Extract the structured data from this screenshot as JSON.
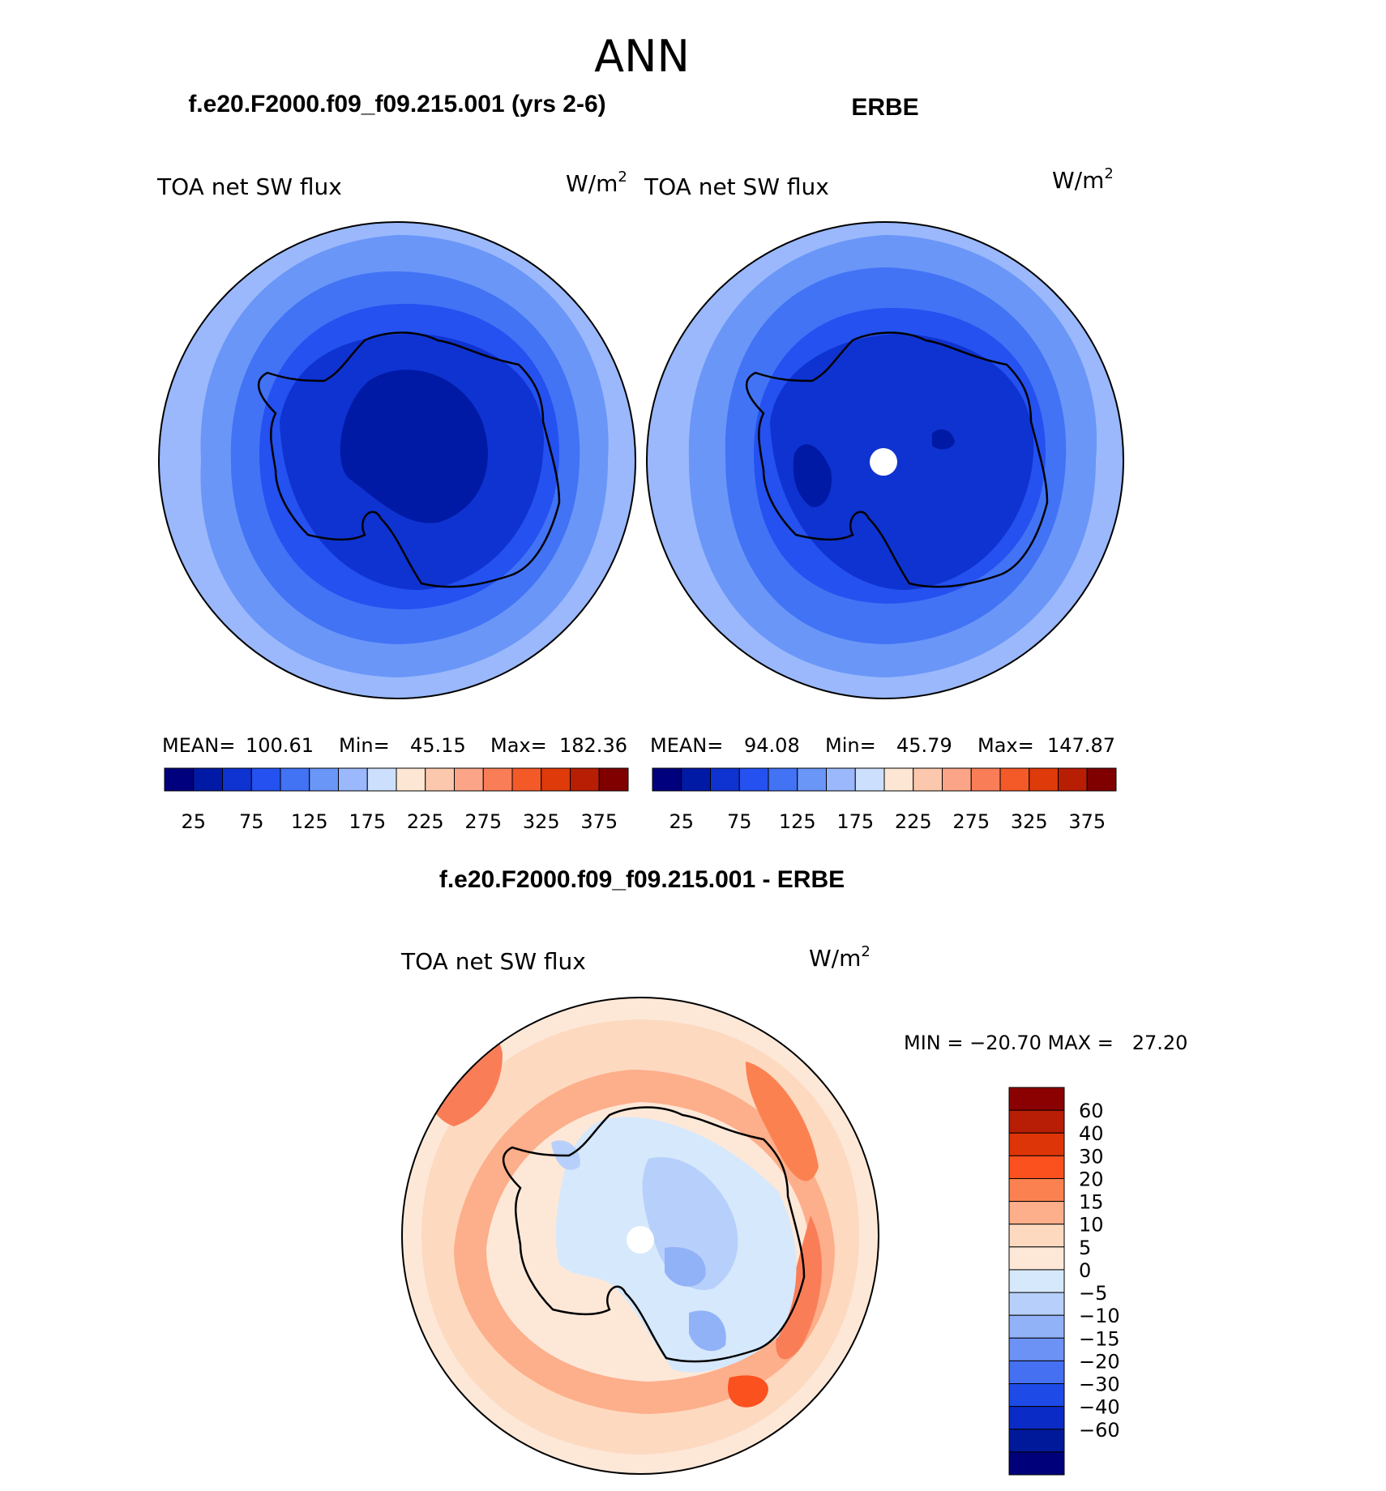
{
  "page_title": "ANN",
  "top_left": {
    "case_title": "f.e20.F2000.f09_f09.215.001 (yrs 2-6)",
    "variable": "TOA net SW flux",
    "units": "W/m",
    "units_sup": "2",
    "stats": {
      "mean_label": "MEAN=",
      "mean": "100.61",
      "min_label": "Min=",
      "min": "45.15",
      "max_label": "Max=",
      "max": "182.36"
    }
  },
  "top_right": {
    "case_title": "ERBE",
    "variable": "TOA net SW flux",
    "units": "W/m",
    "units_sup": "2",
    "stats": {
      "mean_label": "MEAN=",
      "mean": "94.08",
      "min_label": "Min=",
      "min": "45.79",
      "max_label": "Max=",
      "max": "147.87"
    }
  },
  "abs_colorbar": {
    "colors": [
      "#00007f",
      "#001aa6",
      "#0f33d1",
      "#2451f0",
      "#4273f5",
      "#6a96f8",
      "#9ab8fb",
      "#cce0fd",
      "#fde7d4",
      "#fcc8ad",
      "#fba487",
      "#f97e57",
      "#f45a28",
      "#de3a0a",
      "#b71e04",
      "#800000"
    ],
    "labels": [
      "25",
      "75",
      "125",
      "175",
      "225",
      "275",
      "325",
      "375"
    ]
  },
  "bottom": {
    "case_title": "f.e20.F2000.f09_f09.215.001 - ERBE",
    "variable": "TOA net SW flux",
    "units": "W/m",
    "units_sup": "2",
    "minmax": "MIN = −20.70 MAX =   27.20"
  },
  "diff_colorbar": {
    "colors": [
      "#8b0000",
      "#b81d06",
      "#de3508",
      "#fb511f",
      "#fb8250",
      "#fdae8a",
      "#fdd9c0",
      "#fde8d8",
      "#d6e8fc",
      "#b7d0fb",
      "#92b2f8",
      "#6d92f5",
      "#4570f2",
      "#1e4be8",
      "#0a2bc5",
      "#00189a",
      "#00007a"
    ],
    "labels": [
      "60",
      "40",
      "30",
      "20",
      "15",
      "10",
      "5",
      "0",
      "−5",
      "−10",
      "−15",
      "−20",
      "−30",
      "−40",
      "−60"
    ]
  }
}
